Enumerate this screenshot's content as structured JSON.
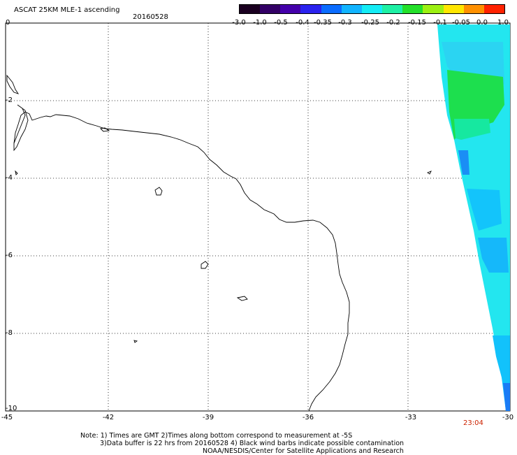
{
  "header": {
    "title": "ASCAT 25KM MLE-1 ascending",
    "date": "20160528"
  },
  "colorbar": {
    "labels": [
      "-3.0",
      "-1.0",
      "-0.5",
      "-0.4",
      "-0.35",
      "-0.3",
      "-0.25",
      "-0.2",
      "-0.15",
      "-0.1",
      "-0.05",
      "0.0",
      "1.0"
    ],
    "colors": [
      "#1a0020",
      "#330066",
      "#4400aa",
      "#2a22ee",
      "#0a6cff",
      "#11b4ff",
      "#14ecf5",
      "#1ef0a4",
      "#24e02a",
      "#9cf012",
      "#ffe600",
      "#ff9000",
      "#ff2200"
    ]
  },
  "map": {
    "y_labels": [
      "0",
      "-2",
      "-4",
      "-6",
      "-8",
      "-10"
    ],
    "x_labels": [
      "-45",
      "-42",
      "-39",
      "-36",
      "-33",
      "-30"
    ],
    "time_label": "23:04",
    "time_color": "#cc2200"
  },
  "footer": {
    "line1": "Note: 1) Times are GMT 2)Times along bottom correspond to measurement at -5S",
    "line2": "3)Data buffer is 22 hrs from 20160528 4) Black wind barbs indicate possible contamination",
    "line3": "NOAA/NESDIS/Center for Satellite Applications and Research"
  }
}
